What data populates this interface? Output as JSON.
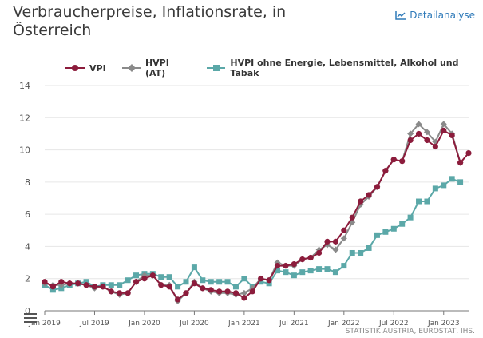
{
  "header": {
    "title": "Verbraucherpreise, Inflationsrate, in Österreich",
    "detail_label": "Detailanalyse",
    "detail_icon": "line-chart-icon"
  },
  "footer": {
    "credits": "STATISTIK AUSTRIA, EUROSTAT, IHS."
  },
  "menu": {
    "icon": "hamburger-menu-icon"
  },
  "colors": {
    "vpi": "#8c1c3c",
    "hvpi": "#8a8a8a",
    "core": "#5ba8a8",
    "grid": "#e6e6e6",
    "axis": "#777777",
    "link": "#2f7ab9"
  },
  "chart_data": {
    "type": "line",
    "x_start": "Jan 2019",
    "x_ticks": [
      {
        "label": "Jan 2019",
        "index": 0
      },
      {
        "label": "Jul 2019",
        "index": 6
      },
      {
        "label": "Jan 2020",
        "index": 12
      },
      {
        "label": "Jul 2020",
        "index": 18
      },
      {
        "label": "Jan 2021",
        "index": 24
      },
      {
        "label": "Jul 2021",
        "index": 30
      },
      {
        "label": "Jan 2022",
        "index": 36
      },
      {
        "label": "Jul 2022",
        "index": 42
      },
      {
        "label": "Jan 2023",
        "index": 48
      }
    ],
    "y_ticks": [
      0,
      2,
      4,
      6,
      8,
      10,
      12,
      14
    ],
    "ylim": [
      0,
      14
    ],
    "grid": true,
    "legend": "top",
    "series": [
      {
        "name": "VPI",
        "marker": "circle",
        "values": [
          1.8,
          1.5,
          1.8,
          1.7,
          1.7,
          1.6,
          1.5,
          1.5,
          1.2,
          1.1,
          1.1,
          1.8,
          2.0,
          2.2,
          1.6,
          1.5,
          0.7,
          1.1,
          1.7,
          1.4,
          1.3,
          1.2,
          1.2,
          1.1,
          0.8,
          1.2,
          2.0,
          1.9,
          2.8,
          2.8,
          2.9,
          3.2,
          3.3,
          3.6,
          4.3,
          4.3,
          5.0,
          5.8,
          6.8,
          7.2,
          7.7,
          8.7,
          9.4,
          9.3,
          10.6,
          11.0,
          10.6,
          10.2,
          11.2,
          10.9,
          9.2,
          9.8
        ]
      },
      {
        "name": "HVPI (AT)",
        "marker": "diamond",
        "values": [
          1.7,
          1.6,
          1.6,
          1.7,
          1.7,
          1.6,
          1.4,
          1.5,
          1.2,
          1.0,
          1.1,
          1.8,
          2.2,
          2.2,
          1.6,
          1.6,
          0.6,
          1.1,
          1.8,
          1.4,
          1.2,
          1.1,
          1.1,
          1.0,
          1.1,
          1.4,
          2.0,
          1.9,
          3.0,
          2.8,
          2.8,
          3.2,
          3.3,
          3.8,
          4.1,
          3.8,
          4.5,
          5.5,
          6.6,
          7.1,
          7.7,
          8.7,
          9.4,
          9.3,
          11.0,
          11.6,
          11.1,
          10.5,
          11.6,
          11.0,
          9.2,
          null
        ]
      },
      {
        "name": "HVPI ohne Energie, Lebensmittel, Alkohol und Tabak",
        "marker": "square",
        "values": [
          1.6,
          1.3,
          1.4,
          1.6,
          1.7,
          1.8,
          1.5,
          1.6,
          1.6,
          1.6,
          1.9,
          2.2,
          2.3,
          2.3,
          2.1,
          2.1,
          1.5,
          1.8,
          2.7,
          1.9,
          1.8,
          1.8,
          1.8,
          1.5,
          2.0,
          1.5,
          1.8,
          1.7,
          2.5,
          2.4,
          2.2,
          2.4,
          2.5,
          2.6,
          2.6,
          2.4,
          2.8,
          3.6,
          3.6,
          3.9,
          4.7,
          4.9,
          5.1,
          5.4,
          5.8,
          6.8,
          6.8,
          7.6,
          7.8,
          8.2,
          8.0,
          null
        ]
      }
    ]
  }
}
